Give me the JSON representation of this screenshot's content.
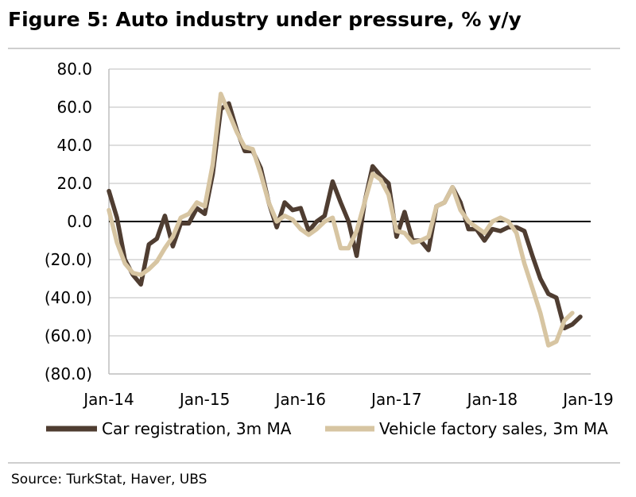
{
  "title": "Figure 5: Auto industry under pressure, % y/y",
  "source": "Source:  TurkStat, Haver, UBS",
  "colors": {
    "car": "#4f3d31",
    "vehicle": "#d7c5a2",
    "grid": "#bdbdbd",
    "zero": "#000000"
  },
  "chart_data": {
    "type": "line",
    "title": "Auto industry under pressure, % y/y",
    "ylim": [
      -80,
      80
    ],
    "y_ticks": [
      80,
      60,
      40,
      20,
      0,
      -20,
      -40,
      -60,
      -80
    ],
    "y_tick_labels": [
      "80.0",
      "60.0",
      "40.0",
      "20.0",
      "0.0",
      "(20.0)",
      "(40.0)",
      "(60.0)",
      "(80.0)"
    ],
    "x_start": "Jan-14",
    "x_tick_months": [
      0,
      12,
      24,
      36,
      48,
      60
    ],
    "x_tick_labels": [
      "Jan-14",
      "Jan-15",
      "Jan-16",
      "Jan-17",
      "Jan-18",
      "Jan-19"
    ],
    "legend_position": "bottom",
    "series": [
      {
        "name": "Car registration, 3m MA",
        "values": [
          16,
          2,
          -20,
          -28,
          -33,
          -12,
          -9,
          3,
          -13,
          -1,
          -1,
          7,
          4,
          25,
          59,
          62,
          48,
          37,
          37,
          28,
          10,
          -3,
          10,
          6,
          7,
          -5,
          0,
          3,
          21,
          10,
          0,
          -18,
          10,
          29,
          24,
          20,
          -8,
          5,
          -10,
          -10,
          -15,
          8,
          10,
          18,
          10,
          -4,
          -4,
          -10,
          -4,
          -5,
          -3,
          -3,
          -5,
          -18,
          -30,
          -38,
          -40,
          -56,
          -54,
          -50
        ]
      },
      {
        "name": "Vehicle factory sales, 3m MA",
        "values": [
          6,
          -11,
          -22,
          -27,
          -28,
          -25,
          -21,
          -14,
          -8,
          2,
          4,
          10,
          8,
          30,
          67,
          57,
          47,
          39,
          38,
          25,
          10,
          0,
          3,
          1,
          -4,
          -7,
          -4,
          0,
          2,
          -14,
          -14,
          -5,
          10,
          25,
          22,
          14,
          -5,
          -6,
          -11,
          -10,
          -8,
          8,
          10,
          18,
          6,
          0,
          -3,
          -6,
          0,
          2,
          0,
          -6,
          -22,
          -35,
          -48,
          -65,
          -63,
          -52,
          -48
        ]
      }
    ]
  }
}
